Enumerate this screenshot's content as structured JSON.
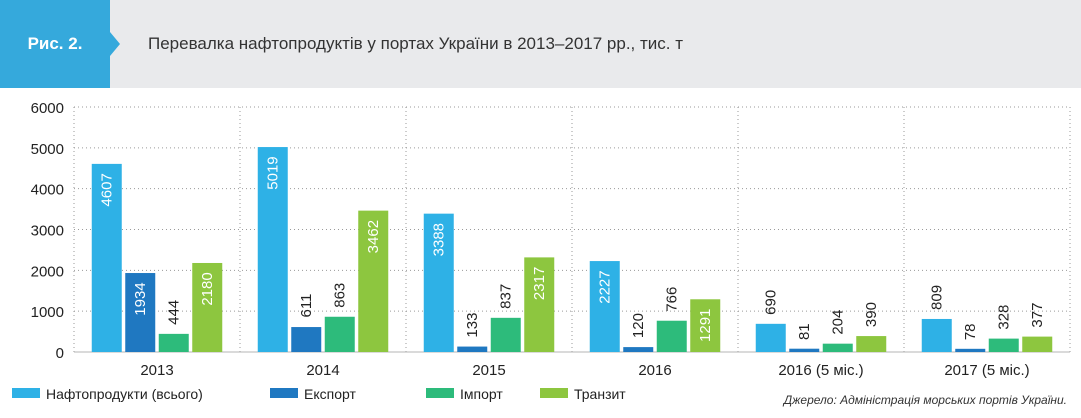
{
  "figure": {
    "badge": "Рис. 2.",
    "title": "Перевалка нафтопродуктів у портах України в 2013–2017 рр., тис. т",
    "source": "Джерело: Адміністрація морських портів України."
  },
  "colors": {
    "header_band": "#e9eaec",
    "badge": "#35a9dc"
  },
  "chart_data": {
    "type": "bar",
    "categories": [
      "2013",
      "2014",
      "2015",
      "2016",
      "2016 (5 міс.)",
      "2017 (5 міс.)"
    ],
    "ylim": [
      0,
      6000
    ],
    "yticks": [
      "0",
      "1000",
      "2000",
      "3000",
      "4000",
      "5000",
      "6000"
    ],
    "grid": true,
    "legend_position": "bottom-left",
    "series": [
      {
        "name": "Нафтопродукти (всього)",
        "color": "#2eb1e6",
        "values": [
          4607,
          5019,
          3388,
          2227,
          690,
          809
        ]
      },
      {
        "name": "Експорт",
        "color": "#1f78c1",
        "values": [
          1934,
          611,
          133,
          120,
          81,
          78
        ]
      },
      {
        "name": "Імпорт",
        "color": "#2dbb7b",
        "values": [
          444,
          863,
          837,
          766,
          204,
          328
        ]
      },
      {
        "name": "Транзит",
        "color": "#8dc63f",
        "values": [
          2180,
          3462,
          2317,
          1291,
          390,
          377
        ]
      }
    ]
  }
}
